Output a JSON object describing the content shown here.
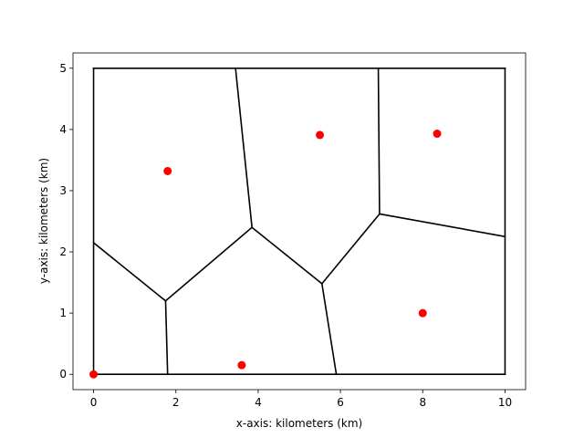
{
  "chart_data": {
    "type": "scatter",
    "title": "",
    "xlabel": "x-axis: kilometers (km)",
    "ylabel": "y-axis: kilometers (km)",
    "xlim": [
      -0.5,
      10.5
    ],
    "ylim": [
      -0.25,
      5.25
    ],
    "xticks": [
      0,
      2,
      4,
      6,
      8,
      10
    ],
    "yticks": [
      0,
      1,
      2,
      3,
      4,
      5
    ],
    "grid": false,
    "point_color": "#ff0000",
    "line_color": "#000000",
    "points": [
      {
        "x": 0.0,
        "y": 0.0
      },
      {
        "x": 1.8,
        "y": 3.32
      },
      {
        "x": 3.6,
        "y": 0.15
      },
      {
        "x": 5.5,
        "y": 3.91
      },
      {
        "x": 8.0,
        "y": 1.0
      },
      {
        "x": 8.35,
        "y": 3.93
      }
    ],
    "segments": [
      [
        [
          0,
          0
        ],
        [
          10,
          0
        ]
      ],
      [
        [
          10,
          0
        ],
        [
          10,
          5
        ]
      ],
      [
        [
          10,
          5
        ],
        [
          0,
          5
        ]
      ],
      [
        [
          0,
          5
        ],
        [
          0,
          0
        ]
      ],
      [
        [
          0,
          2.15
        ],
        [
          1.75,
          1.2
        ]
      ],
      [
        [
          1.75,
          1.2
        ],
        [
          1.8,
          0.0
        ]
      ],
      [
        [
          1.75,
          1.2
        ],
        [
          3.85,
          2.4
        ]
      ],
      [
        [
          3.85,
          2.4
        ],
        [
          3.45,
          5.0
        ]
      ],
      [
        [
          3.85,
          2.4
        ],
        [
          5.55,
          1.48
        ]
      ],
      [
        [
          5.55,
          1.48
        ],
        [
          5.9,
          0.0
        ]
      ],
      [
        [
          5.55,
          1.48
        ],
        [
          6.95,
          2.62
        ]
      ],
      [
        [
          6.95,
          2.62
        ],
        [
          6.92,
          5.0
        ]
      ],
      [
        [
          6.95,
          2.62
        ],
        [
          10.0,
          2.25
        ]
      ]
    ]
  }
}
